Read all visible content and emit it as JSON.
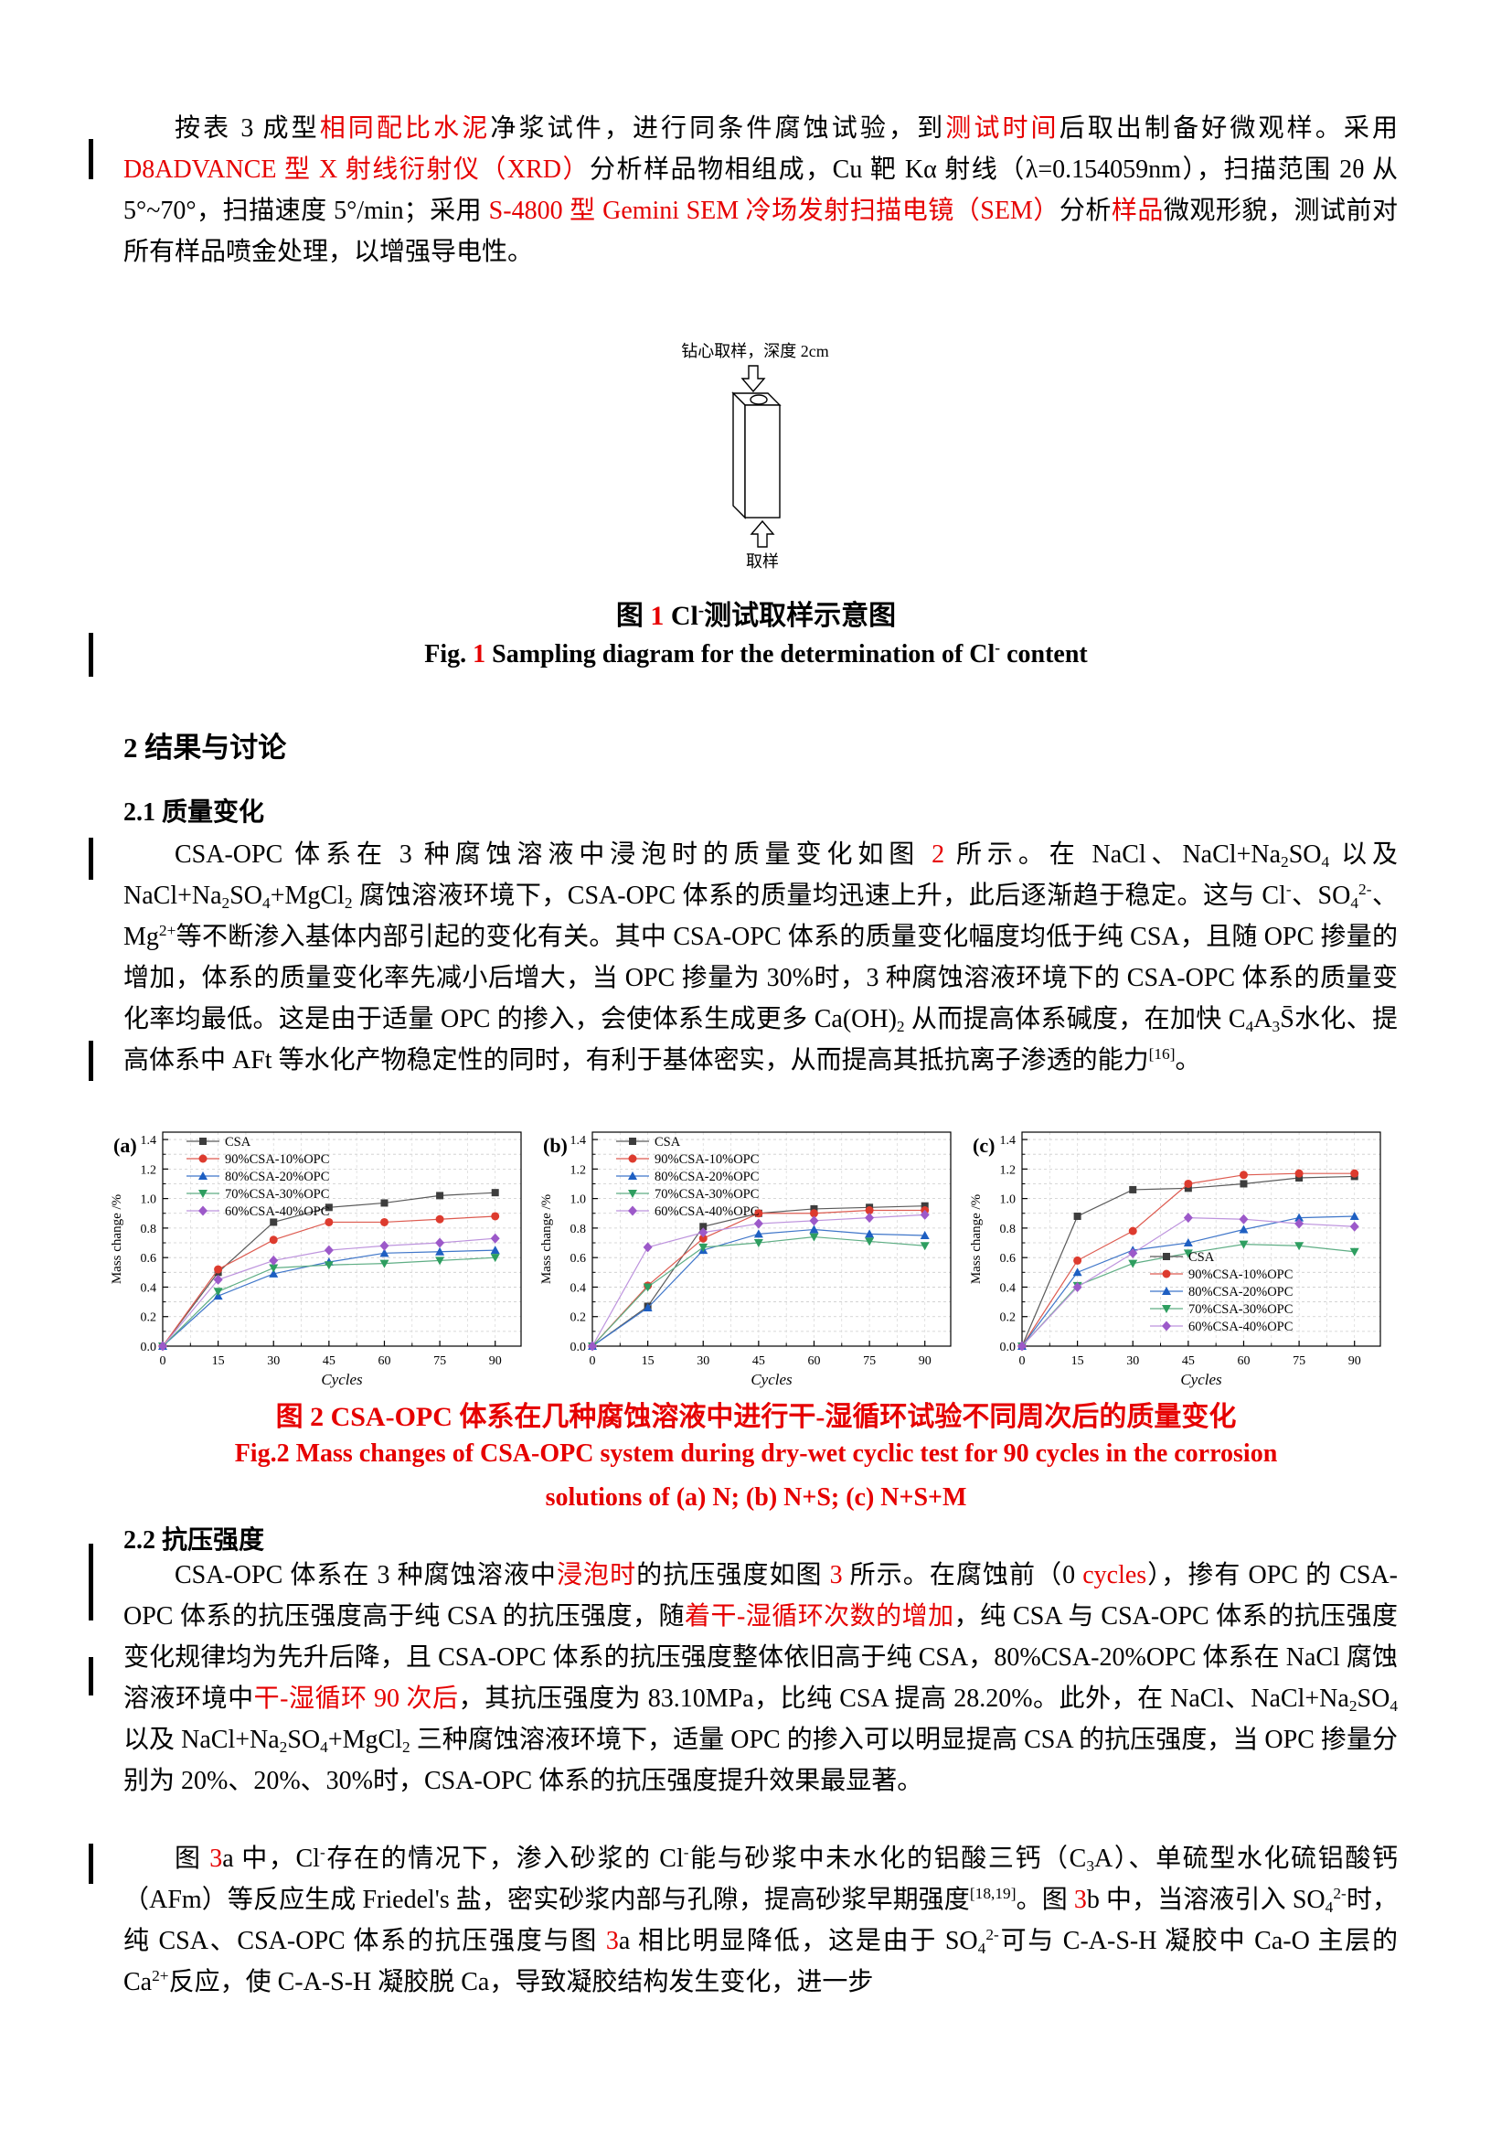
{
  "colors": {
    "accent_red": "#e60000",
    "grid": "#cccccc"
  },
  "para1": {
    "runs": [
      {
        "t": "按表 3 成型"
      },
      {
        "t": "相同配比水泥",
        "red": true
      },
      {
        "t": "净浆试件，进行同条件腐蚀试验，到"
      },
      {
        "t": "测试时间",
        "red": true
      },
      {
        "t": "后取出制备好微观样。采用 "
      },
      {
        "t": "D8ADVANCE 型 X 射线衍射仪（XRD）",
        "red": true
      },
      {
        "t": "分析样品物相组成，Cu 靶 Kα 射线（λ=0.154059nm），扫描范围 2θ 从 5°~70°，扫描速度 5°/min；采用 "
      },
      {
        "t": "S-4800 型 Gemini SEM 冷场发射扫描电镜（SEM）",
        "red": true
      },
      {
        "t": "分析"
      },
      {
        "t": "样品",
        "red": true
      },
      {
        "t": "微观形貌，测试前对所有样品喷金处理，以增强导电性。"
      }
    ]
  },
  "figure1": {
    "top_label": "钻心取样，深度 2cm",
    "bottom_label": "取样",
    "caption_zh_runs": [
      {
        "t": "图 "
      },
      {
        "t": "1",
        "red": true
      },
      {
        "t": " Cl"
      },
      {
        "t": "-",
        "sup": true
      },
      {
        "t": "测试取样示意图"
      }
    ],
    "caption_en_runs": [
      {
        "t": "Fig. "
      },
      {
        "t": "1",
        "red": true
      },
      {
        "t": " Sampling diagram for the determination of Cl"
      },
      {
        "t": "-",
        "sup": true
      },
      {
        "t": " content"
      }
    ]
  },
  "headings": {
    "h2": "2 结果与讨论",
    "h3_mass": "2.1 质量变化",
    "h3_strength": "2.2 抗压强度"
  },
  "para2": {
    "runs": [
      {
        "t": "CSA-OPC 体系在 3 种腐蚀溶液中浸泡时的质量变化如图 "
      },
      {
        "t": "2",
        "red": true
      },
      {
        "t": " 所示。在 NaCl、NaCl+Na"
      },
      {
        "t": "2",
        "sub": true
      },
      {
        "t": "SO"
      },
      {
        "t": "4",
        "sub": true
      },
      {
        "t": " 以及 NaCl+Na"
      },
      {
        "t": "2",
        "sub": true
      },
      {
        "t": "SO"
      },
      {
        "t": "4",
        "sub": true
      },
      {
        "t": "+MgCl"
      },
      {
        "t": "2",
        "sub": true
      },
      {
        "t": " 腐蚀溶液环境下，CSA-OPC 体系的质量均迅速上升，此后逐渐趋于稳定。这与 Cl"
      },
      {
        "t": "-",
        "sup": true
      },
      {
        "t": "、SO"
      },
      {
        "t": "4",
        "sub": true
      },
      {
        "t": "2-",
        "sup": true
      },
      {
        "t": "、Mg"
      },
      {
        "t": "2+",
        "sup": true
      },
      {
        "t": "等不断渗入基体内部引起的变化有关。其中 CSA-OPC 体系的质量变化幅度均低于纯 CSA，且随 OPC 掺量的增加，体系的质量变化率先减小后增大，当 OPC 掺量为 30%时，3 种腐蚀溶液环境下的 CSA-OPC 体系的质量变化率均最低。这是由于适量 OPC 的掺入，会使体系生成更多 Ca(OH)"
      },
      {
        "t": "2",
        "sub": true
      },
      {
        "t": " 从而提高体系碱度，在加快 C"
      },
      {
        "t": "4",
        "sub": true
      },
      {
        "t": "A"
      },
      {
        "t": "3",
        "sub": true
      },
      {
        "t": "S̄"
      },
      {
        "t": "水化、提高体系中 AFt 等水化产物稳定性的同时，有利于基体密实，从而提高其抵抗离子渗透的能力"
      },
      {
        "t": "[16]",
        "sup": true
      },
      {
        "t": "。"
      }
    ]
  },
  "fig2_caption": {
    "zh": "图 2 CSA-OPC 体系在几种腐蚀溶液中进行干-湿循环试验不同周次后的质量变化",
    "en1": "Fig.2 Mass changes of CSA-OPC system during dry-wet cyclic test for 90 cycles in the corrosion",
    "en2": "solutions of (a) N; (b) N+S; (c) N+S+M"
  },
  "para3": {
    "runs": [
      {
        "t": "CSA-OPC 体系在 3 种腐蚀溶液中"
      },
      {
        "t": "浸泡时",
        "red": true
      },
      {
        "t": "的抗压强度如图 "
      },
      {
        "t": "3",
        "red": true
      },
      {
        "t": " 所示。在腐蚀前（0 "
      },
      {
        "t": "cycles",
        "red": true
      },
      {
        "t": "），掺有 OPC 的 CSA-OPC 体系的抗压强度高于纯 CSA 的抗压强度，随"
      },
      {
        "t": "着干-湿循环次数的增加",
        "red": true
      },
      {
        "t": "，纯 CSA 与 CSA-OPC  体系的抗压强度变化规律均为先升后降，且 CSA-OPC  体系的抗压强度整体依旧高于纯 CSA，80%CSA-20%OPC 体系在 NaCl 腐蚀溶液环境中"
      },
      {
        "t": "干-湿循环 90 次后",
        "red": true
      },
      {
        "t": "，其抗压强度为 83.10MPa，比纯 CSA 提高 28.20%。此外，在 NaCl、NaCl+Na"
      },
      {
        "t": "2",
        "sub": true
      },
      {
        "t": "SO"
      },
      {
        "t": "4",
        "sub": true
      },
      {
        "t": " 以及 NaCl+Na"
      },
      {
        "t": "2",
        "sub": true
      },
      {
        "t": "SO"
      },
      {
        "t": "4",
        "sub": true
      },
      {
        "t": "+MgCl"
      },
      {
        "t": "2",
        "sub": true
      },
      {
        "t": " 三种腐蚀溶液环境下，适量 OPC 的掺入可以明显提高 CSA 的抗压强度，当 OPC 掺量分别为 20%、20%、30%时，CSA-OPC 体系的抗压强度提升效果最显著。"
      }
    ]
  },
  "para4": {
    "runs": [
      {
        "t": "图 "
      },
      {
        "t": "3",
        "red": true
      },
      {
        "t": "a 中，Cl"
      },
      {
        "t": "-",
        "sup": true
      },
      {
        "t": "存在的情况下，渗入砂浆的 Cl"
      },
      {
        "t": "-",
        "sup": true
      },
      {
        "t": "能与砂浆中未水化的铝酸三钙（C"
      },
      {
        "t": "3",
        "sub": true
      },
      {
        "t": "A）、单硫型水化硫铝酸钙（AFm）等反应生成 Friedel's 盐，密实砂浆内部与孔隙，提高砂浆早期强度"
      },
      {
        "t": "[18,19]",
        "sup": true
      },
      {
        "t": "。图 "
      },
      {
        "t": "3",
        "red": true
      },
      {
        "t": "b 中，当溶液引入 SO"
      },
      {
        "t": "4",
        "sub": true
      },
      {
        "t": "2-",
        "sup": true
      },
      {
        "t": "时，纯 CSA、CSA-OPC 体系的抗压强度与图 "
      },
      {
        "t": "3",
        "red": true
      },
      {
        "t": "a 相比明显降低，这是由于 SO"
      },
      {
        "t": "4",
        "sub": true
      },
      {
        "t": "2-",
        "sup": true
      },
      {
        "t": "可与 C-A-S-H 凝胶中 Ca-O 主层的 Ca"
      },
      {
        "t": "2+",
        "sup": true
      },
      {
        "t": "反应，使 C-A-S-H 凝胶脱 Ca，导致凝胶结构发生变化，进一步"
      }
    ]
  },
  "chart_data": [
    {
      "type": "line",
      "panel_label": "(a)",
      "solution": "N",
      "x": [
        0,
        15,
        30,
        45,
        60,
        75,
        90
      ],
      "xlabel": "Cycles",
      "ylabel": "Mass change /%",
      "ylim": [
        0,
        1.45
      ],
      "yticks": [
        0,
        0.2,
        0.4,
        0.6,
        0.8,
        1.0,
        1.2,
        1.4
      ],
      "grid": true,
      "legend_position": [
        86,
        26
      ],
      "series": [
        {
          "name": "CSA",
          "marker": "square",
          "color": "#3d3d3d",
          "line": "#5a5a5a",
          "values": [
            0,
            0.5,
            0.84,
            0.94,
            0.97,
            1.02,
            1.04
          ]
        },
        {
          "name": "90%CSA-10%OPC",
          "marker": "circle",
          "color": "#dd3b2e",
          "line": "#dd5b50",
          "values": [
            0,
            0.52,
            0.72,
            0.84,
            0.84,
            0.86,
            0.88
          ]
        },
        {
          "name": "80%CSA-20%OPC",
          "marker": "triangle-up",
          "color": "#1e5fc2",
          "line": "#3f76c9",
          "values": [
            0,
            0.34,
            0.49,
            0.57,
            0.63,
            0.64,
            0.65
          ]
        },
        {
          "name": "70%CSA-30%OPC",
          "marker": "triangle-down",
          "color": "#2e9e60",
          "line": "#5fae85",
          "values": [
            0,
            0.37,
            0.53,
            0.55,
            0.56,
            0.58,
            0.6
          ]
        },
        {
          "name": "60%CSA-40%OPC",
          "marker": "diamond",
          "color": "#9c59c9",
          "line": "#bd93dd",
          "values": [
            0,
            0.45,
            0.58,
            0.65,
            0.68,
            0.7,
            0.73
          ]
        }
      ]
    },
    {
      "type": "line",
      "panel_label": "(b)",
      "solution": "N+S",
      "x": [
        0,
        15,
        30,
        45,
        60,
        75,
        90
      ],
      "xlabel": "Cycles",
      "ylabel": "Mass change /%",
      "ylim": [
        0,
        1.45
      ],
      "yticks": [
        0,
        0.2,
        0.4,
        0.6,
        0.8,
        1.0,
        1.2,
        1.4
      ],
      "grid": true,
      "legend_position": [
        86,
        26
      ],
      "series": [
        {
          "name": "CSA",
          "marker": "square",
          "color": "#3d3d3d",
          "line": "#5a5a5a",
          "values": [
            0,
            0.27,
            0.81,
            0.9,
            0.93,
            0.94,
            0.95
          ]
        },
        {
          "name": "90%CSA-10%OPC",
          "marker": "circle",
          "color": "#dd3b2e",
          "line": "#dd5b50",
          "values": [
            0,
            0.41,
            0.73,
            0.9,
            0.9,
            0.92,
            0.92
          ]
        },
        {
          "name": "80%CSA-20%OPC",
          "marker": "triangle-up",
          "color": "#1e5fc2",
          "line": "#3f76c9",
          "values": [
            0,
            0.26,
            0.65,
            0.76,
            0.79,
            0.76,
            0.75
          ]
        },
        {
          "name": "70%CSA-30%OPC",
          "marker": "triangle-down",
          "color": "#2e9e60",
          "line": "#5fae85",
          "values": [
            0,
            0.4,
            0.67,
            0.7,
            0.74,
            0.71,
            0.68
          ]
        },
        {
          "name": "60%CSA-40%OPC",
          "marker": "diamond",
          "color": "#9c59c9",
          "line": "#bd93dd",
          "values": [
            0,
            0.67,
            0.77,
            0.83,
            0.85,
            0.87,
            0.89
          ]
        }
      ]
    },
    {
      "type": "line",
      "panel_label": "(c)",
      "solution": "N+S+M",
      "x": [
        0,
        15,
        30,
        45,
        60,
        75,
        90
      ],
      "xlabel": "Cycles",
      "ylabel": "Mass change /%",
      "ylim": [
        0,
        1.45
      ],
      "yticks": [
        0,
        0.2,
        0.4,
        0.6,
        0.8,
        1.0,
        1.2,
        1.4
      ],
      "grid": true,
      "legend_position": [
        200,
        152
      ],
      "series": [
        {
          "name": "CSA",
          "marker": "square",
          "color": "#3d3d3d",
          "line": "#5a5a5a",
          "values": [
            0,
            0.88,
            1.06,
            1.07,
            1.1,
            1.14,
            1.15
          ]
        },
        {
          "name": "90%CSA-10%OPC",
          "marker": "circle",
          "color": "#dd3b2e",
          "line": "#dd5b50",
          "values": [
            0,
            0.58,
            0.78,
            1.1,
            1.16,
            1.17,
            1.17
          ]
        },
        {
          "name": "80%CSA-20%OPC",
          "marker": "triangle-up",
          "color": "#1e5fc2",
          "line": "#3f76c9",
          "values": [
            0,
            0.5,
            0.65,
            0.7,
            0.79,
            0.87,
            0.88
          ]
        },
        {
          "name": "70%CSA-30%OPC",
          "marker": "triangle-down",
          "color": "#2e9e60",
          "line": "#5fae85",
          "values": [
            0,
            0.41,
            0.56,
            0.63,
            0.69,
            0.68,
            0.64
          ]
        },
        {
          "name": "60%CSA-40%OPC",
          "marker": "diamond",
          "color": "#9c59c9",
          "line": "#bd93dd",
          "values": [
            0,
            0.4,
            0.63,
            0.87,
            0.86,
            0.83,
            0.81
          ]
        }
      ]
    }
  ]
}
